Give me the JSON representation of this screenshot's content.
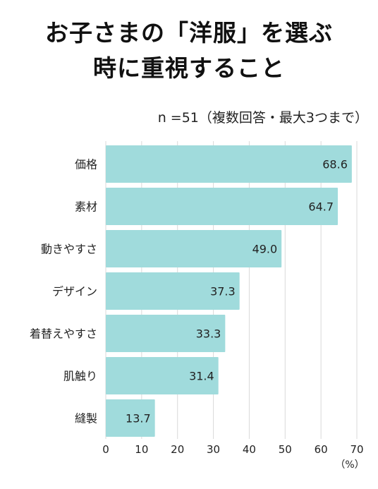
{
  "title_lines": [
    "お子さまの「洋服」を選ぶ",
    "時に重視すること"
  ],
  "subtitle": "n =51（複数回答・最大3つまで）",
  "colors": {
    "bar": "#a0dbdc",
    "grid": "#d9d9d9",
    "text": "#222222"
  },
  "chart_data": {
    "type": "bar",
    "orientation": "horizontal",
    "title": "お子さまの「洋服」を選ぶ時に重視すること",
    "subtitle": "n =51（複数回答・最大3つまで）",
    "categories": [
      "価格",
      "素材",
      "動きやすさ",
      "デザイン",
      "着替えやすさ",
      "肌触り",
      "縫製"
    ],
    "values": [
      68.6,
      64.7,
      49.0,
      37.3,
      33.3,
      31.4,
      13.7
    ],
    "value_labels": [
      "68.6",
      "64.7",
      "49.0",
      "37.3",
      "33.3",
      "31.4",
      "13.7"
    ],
    "xlim": [
      0,
      70
    ],
    "xticks": [
      "0",
      "10",
      "20",
      "30",
      "40",
      "50",
      "60",
      "70"
    ],
    "unit_label": "（%）",
    "grid": true,
    "legend": "none"
  }
}
